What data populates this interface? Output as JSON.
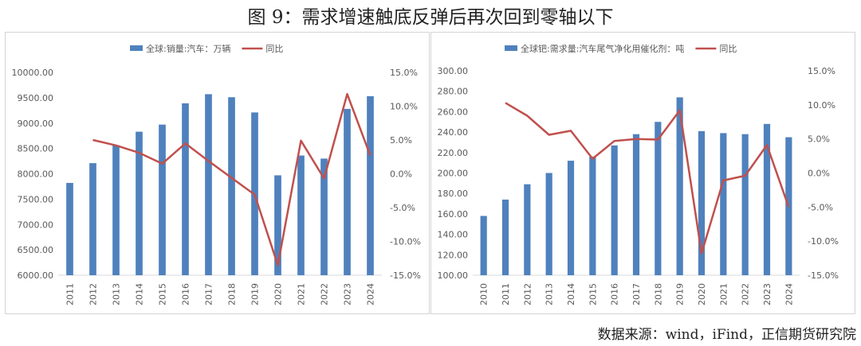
{
  "figure_title": "图 9：需求增速触底反弹后再次回到零轴以下",
  "source": "数据来源：wind，iFind，正信期货研究院",
  "colors": {
    "bar": "#4f81bd",
    "line": "#c0504d"
  },
  "chart_data": [
    {
      "type": "bar",
      "legend": {
        "bar": "全球:销量:汽车：万辆",
        "line": "同比",
        "position": "top"
      },
      "categories": [
        "2011",
        "2012",
        "2013",
        "2014",
        "2015",
        "2016",
        "2017",
        "2018",
        "2019",
        "2020",
        "2021",
        "2022",
        "2023",
        "2024"
      ],
      "series": [
        {
          "name": "全球:销量:汽车：万辆",
          "type": "bar",
          "axis": "left",
          "values": [
            7820,
            8210,
            8560,
            8830,
            8970,
            9390,
            9570,
            9510,
            9210,
            7970,
            8360,
            8300,
            9280,
            9530
          ]
        },
        {
          "name": "同比",
          "type": "line",
          "axis": "right",
          "values": [
            null,
            5.0,
            4.2,
            3.1,
            1.5,
            4.5,
            1.9,
            -0.6,
            -3.1,
            -13.5,
            4.9,
            -0.7,
            11.8,
            2.7
          ]
        }
      ],
      "ylim_left": [
        6000,
        10000
      ],
      "ylim_right": [
        -15,
        15
      ],
      "yticks_left": [
        "10000.00",
        "9500.00",
        "9000.00",
        "8500.00",
        "8000.00",
        "7500.00",
        "7000.00",
        "6500.00",
        "6000.00"
      ],
      "yticks_right": [
        "15.0%",
        "10.0%",
        "5.0%",
        "0.0%",
        "-5.0%",
        "-10.0%",
        "-15.0%"
      ]
    },
    {
      "type": "bar",
      "legend": {
        "bar": "全球钯:需求量:汽车尾气净化用催化剂：吨",
        "line": "同比",
        "position": "top"
      },
      "categories": [
        "2010",
        "2011",
        "2012",
        "2013",
        "2014",
        "2015",
        "2016",
        "2017",
        "2018",
        "2019",
        "2020",
        "2021",
        "2022",
        "2023",
        "2024"
      ],
      "series": [
        {
          "name": "全球钯:需求量:汽车尾气净化用催化剂：吨",
          "type": "bar",
          "axis": "left",
          "values": [
            158,
            174,
            189,
            200,
            212,
            216,
            227,
            238,
            250,
            274,
            241,
            239,
            238,
            248,
            235
          ]
        },
        {
          "name": "同比",
          "type": "line",
          "axis": "right",
          "values": [
            null,
            10.3,
            8.4,
            5.6,
            6.2,
            2.1,
            4.7,
            5.0,
            4.9,
            9.2,
            -11.8,
            -1.1,
            -0.4,
            4.1,
            -5.0
          ]
        }
      ],
      "ylim_left": [
        100,
        300
      ],
      "ylim_right": [
        -15,
        15
      ],
      "yticks_left": [
        "300.00",
        "280.00",
        "260.00",
        "240.00",
        "220.00",
        "200.00",
        "180.00",
        "160.00",
        "140.00",
        "120.00",
        "100.00"
      ],
      "yticks_right": [
        "15.0%",
        "10.0%",
        "5.0%",
        "0.0%",
        "-5.0%",
        "-10.0%",
        "-15.0%"
      ]
    }
  ]
}
